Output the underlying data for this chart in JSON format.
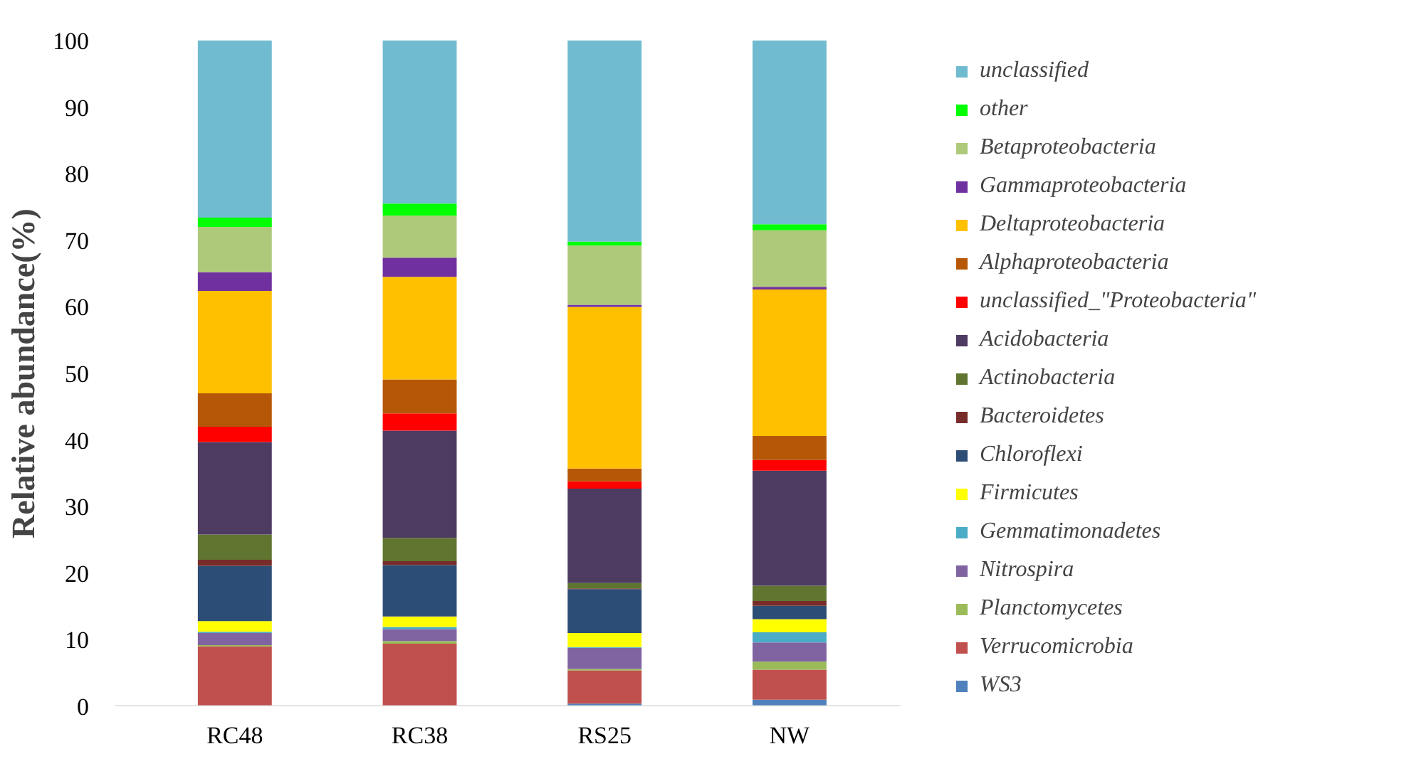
{
  "chart_data": {
    "type": "bar",
    "stacked": true,
    "ylabel": "Relative abundance(%)",
    "categories": [
      "RC48",
      "RC38",
      "RS25",
      "NW"
    ],
    "ylim": [
      0,
      100
    ],
    "yticks": [
      0,
      10,
      20,
      30,
      40,
      50,
      60,
      70,
      80,
      90,
      100
    ],
    "grid": false,
    "legend": "right",
    "series": [
      {
        "name": "WS3",
        "color": "#4f81bd",
        "values": [
          0.0,
          0.0,
          0.4,
          1.0
        ]
      },
      {
        "name": "Verrucomicrobia",
        "color": "#c0504d",
        "values": [
          9.0,
          9.4,
          5.0,
          4.5
        ]
      },
      {
        "name": "Planctomycetes",
        "color": "#9bbb59",
        "values": [
          0.2,
          0.4,
          0.2,
          1.2
        ]
      },
      {
        "name": "Nitrospira",
        "color": "#8064a2",
        "values": [
          1.8,
          1.8,
          3.2,
          2.9
        ]
      },
      {
        "name": "Gemmatimonadetes",
        "color": "#4bacc6",
        "values": [
          0.2,
          0.3,
          0.1,
          1.5
        ]
      },
      {
        "name": "Firmicutes",
        "color": "#ffff00",
        "values": [
          1.6,
          1.6,
          2.1,
          2.0
        ]
      },
      {
        "name": "Chloroflexi",
        "color": "#2c4d75",
        "values": [
          8.3,
          7.7,
          6.6,
          2.0
        ]
      },
      {
        "name": "Bacteroidetes",
        "color": "#772c2a",
        "values": [
          0.9,
          0.6,
          0.1,
          0.7
        ]
      },
      {
        "name": "Actinobacteria",
        "color": "#5f7530",
        "values": [
          3.8,
          3.5,
          0.8,
          2.3
        ]
      },
      {
        "name": "Acidobacteria",
        "color": "#4d3b62",
        "values": [
          13.9,
          16.1,
          14.2,
          17.3
        ]
      },
      {
        "name": "unclassified_\"Proteobacteria\"",
        "color": "#ff0000",
        "values": [
          2.3,
          2.6,
          1.1,
          1.6
        ]
      },
      {
        "name": "Alphaproteobacteria",
        "color": "#b65708",
        "values": [
          5.0,
          5.1,
          1.9,
          3.6
        ]
      },
      {
        "name": "Deltaproteobacteria",
        "color": "#ffc000",
        "values": [
          15.4,
          15.4,
          24.3,
          22.0
        ]
      },
      {
        "name": "Gammaproteobacteria",
        "color": "#7030a0",
        "values": [
          2.8,
          2.9,
          0.3,
          0.4
        ]
      },
      {
        "name": "Betaproteobacteria",
        "color": "#afc97a",
        "values": [
          6.8,
          6.3,
          8.9,
          8.5
        ]
      },
      {
        "name": "other",
        "color": "#00ff00",
        "values": [
          1.4,
          1.8,
          0.6,
          0.9
        ]
      },
      {
        "name": "unclassified",
        "color": "#70bbcf",
        "values": [
          26.6,
          24.5,
          30.2,
          27.6
        ]
      }
    ]
  }
}
